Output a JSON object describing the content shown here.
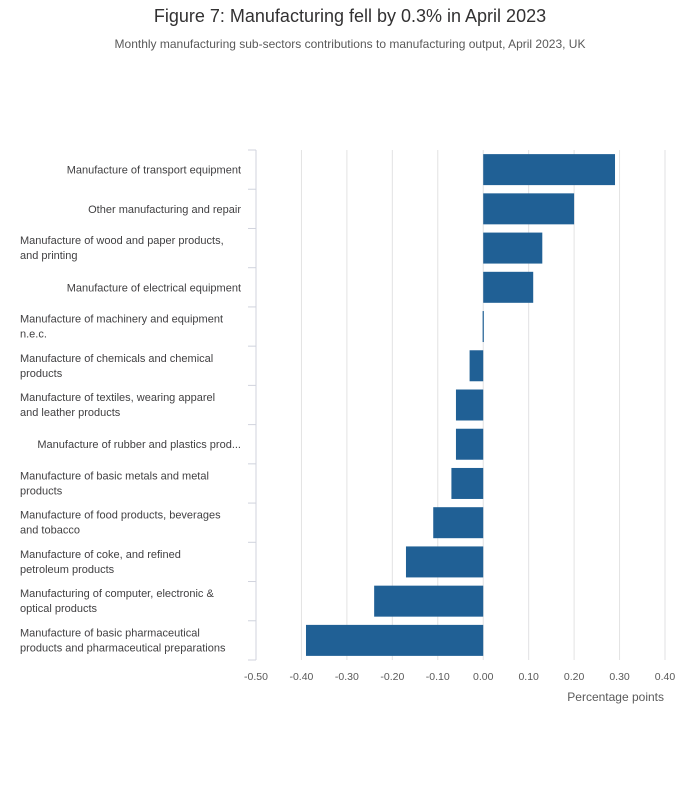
{
  "chart_data": {
    "type": "bar",
    "orientation": "horizontal",
    "title": "Figure 7: Manufacturing fell by 0.3% in April 2023",
    "subtitle": "Monthly manufacturing sub-sectors contributions to manufacturing output, April 2023, UK",
    "xlabel": "Percentage points",
    "ylabel": "",
    "xlim": [
      -0.5,
      0.4
    ],
    "xticks": [
      "-0.50",
      "-0.40",
      "-0.30",
      "-0.20",
      "-0.10",
      "0.00",
      "0.10",
      "0.20",
      "0.30",
      "0.40"
    ],
    "xtick_values": [
      -0.5,
      -0.4,
      -0.3,
      -0.2,
      -0.1,
      0.0,
      0.1,
      0.2,
      0.3,
      0.4
    ],
    "grid": true,
    "bar_color": "#206095",
    "categories": [
      [
        "Manufacture of transport equipment"
      ],
      [
        "Other manufacturing and repair"
      ],
      [
        "Manufacture of wood and paper products,",
        "and printing"
      ],
      [
        "Manufacture of electrical equipment"
      ],
      [
        "Manufacture of machinery and equipment",
        "n.e.c."
      ],
      [
        "Manufacture of chemicals and chemical",
        "products"
      ],
      [
        "Manufacture of textiles, wearing apparel",
        "and leather products"
      ],
      [
        "Manufacture of rubber and plastics prod..."
      ],
      [
        "Manufacture of basic metals and metal",
        "products"
      ],
      [
        "Manufacture of food products, beverages",
        "and tobacco"
      ],
      [
        "Manufacture of coke, and refined",
        "petroleum products"
      ],
      [
        "Manufacturing of computer, electronic &",
        "optical products"
      ],
      [
        "Manufacture of basic pharmaceutical",
        "products and pharmaceutical preparations"
      ]
    ],
    "values": [
      0.29,
      0.2,
      0.13,
      0.11,
      0.0,
      -0.03,
      -0.06,
      -0.06,
      -0.07,
      -0.11,
      -0.17,
      -0.24,
      -0.39
    ]
  }
}
